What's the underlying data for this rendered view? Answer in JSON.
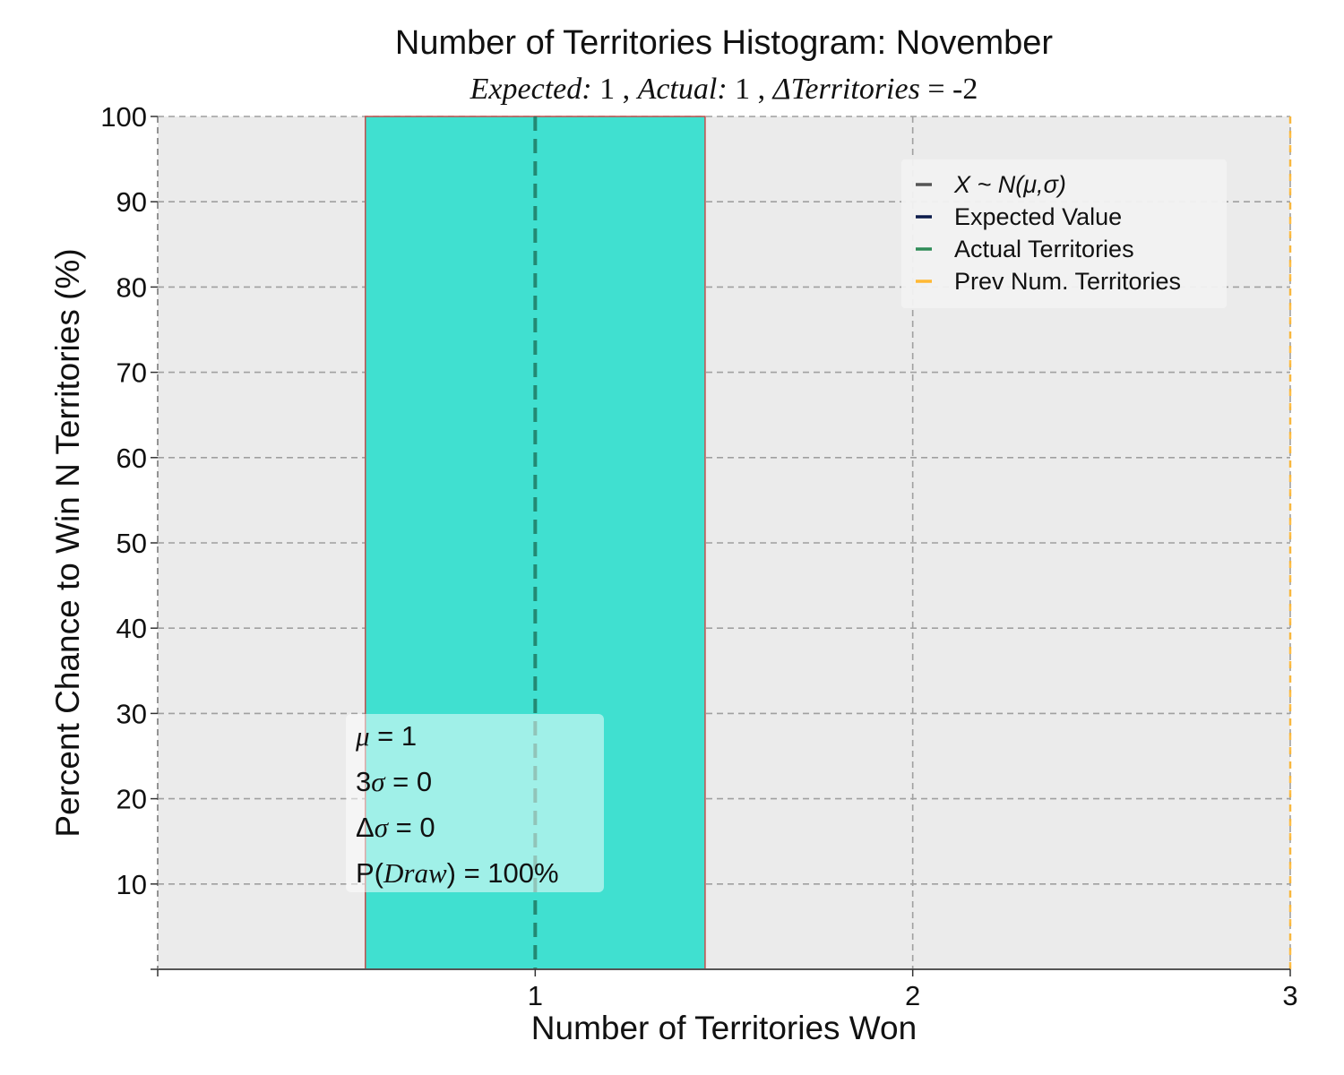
{
  "chart_data": {
    "type": "bar",
    "title": "Number of Territories Histogram: November",
    "subtitle": {
      "expected_label": "Expected:",
      "expected_value": "1",
      "actual_label": "Actual:",
      "actual_value": "1",
      "delta_label": "ΔTerritories",
      "delta_value": "= -2"
    },
    "xlabel": "Number of Territories Won",
    "ylabel": "Percent Chance to Win N Territories (%)",
    "xlim": [
      0,
      3
    ],
    "ylim": [
      0,
      100
    ],
    "xticks": [
      1,
      2,
      3
    ],
    "yticks": [
      10,
      20,
      30,
      40,
      50,
      60,
      70,
      80,
      90,
      100
    ],
    "grid": true,
    "bars": [
      {
        "x": 1,
        "width": 0.9,
        "value": 100,
        "color": "#40E0D0",
        "edge_color": "#c0504d"
      }
    ],
    "vlines": [
      {
        "name": "Actual Territories",
        "x": 1,
        "color": "#1f7a63",
        "style": "dashed"
      },
      {
        "name": "Prev Num. Territories",
        "x": 3,
        "color": "#FFB833",
        "style": "dashed"
      }
    ],
    "legend": {
      "placement": "upper-right",
      "items": [
        {
          "label": "X ~ N(μ,σ)",
          "color": "#555555",
          "italic": true
        },
        {
          "label": "Expected Value",
          "color": "#0b1a4a",
          "italic": false
        },
        {
          "label": "Actual Territories",
          "color": "#2e8b57",
          "italic": false
        },
        {
          "label": "Prev Num. Territories",
          "color": "#FFB833",
          "italic": false
        }
      ]
    },
    "stats_box": {
      "placement": "lower-left",
      "lines": [
        {
          "sym": "μ",
          "text": " = 1"
        },
        {
          "pre": "3",
          "sym": "σ",
          "text": " = 0"
        },
        {
          "pre": "Δ",
          "sym": "σ",
          "text": " = 0"
        },
        {
          "pre": "P(",
          "sym": "Draw",
          "text": ") = 100%"
        }
      ]
    },
    "colors": {
      "plot_background": "#ebebeb",
      "grid": "#a0a0a0",
      "axis": "#555555"
    }
  }
}
